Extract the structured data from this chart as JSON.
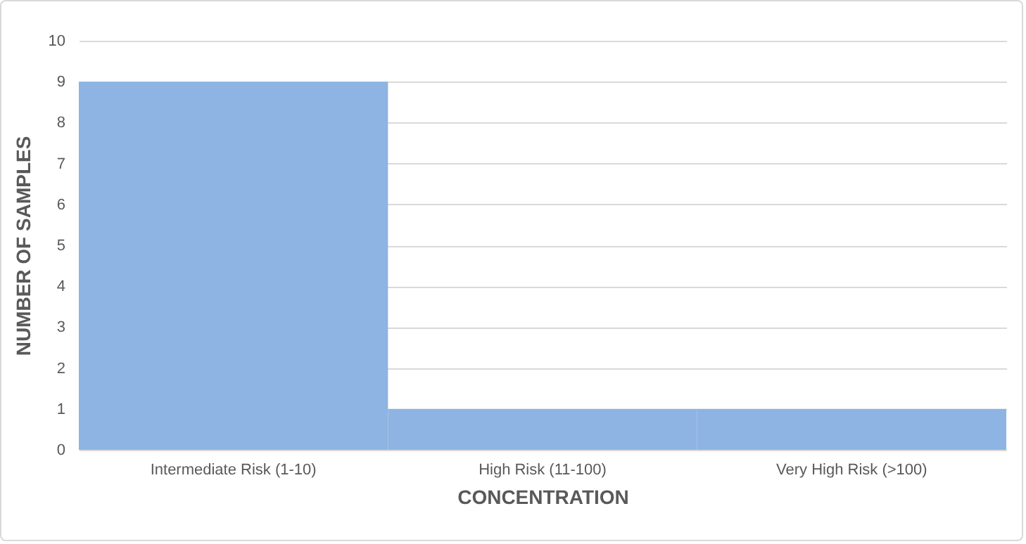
{
  "chart_data": {
    "type": "bar",
    "xlabel": "CONCENTRATION",
    "ylabel": "NUMBER OF SAMPLES",
    "categories": [
      "Intermediate Risk (1-10)",
      "High Risk (11-100)",
      "Very High Risk (>100)"
    ],
    "values": [
      9,
      1,
      1
    ],
    "color": "#8db4e2",
    "ylim": [
      0,
      10
    ],
    "yticks": [
      0,
      1,
      2,
      3,
      4,
      5,
      6,
      7,
      8,
      9,
      10
    ],
    "grid": "y"
  }
}
